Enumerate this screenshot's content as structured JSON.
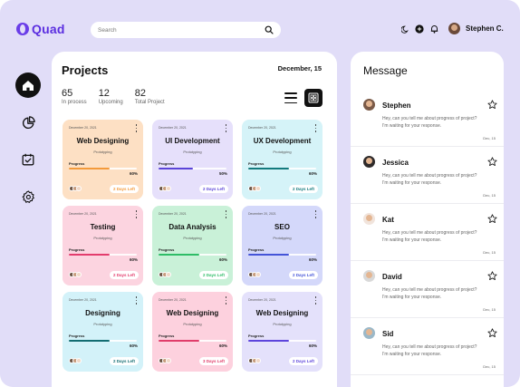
{
  "app": {
    "logo": "Quad"
  },
  "search": {
    "placeholder": "Search"
  },
  "user": {
    "name": "Stephen C."
  },
  "projects": {
    "title": "Projects",
    "date": "December, 15",
    "stats": [
      {
        "value": "65",
        "label": "In process"
      },
      {
        "value": "12",
        "label": "Upcoming"
      },
      {
        "value": "82",
        "label": "Total Project"
      }
    ],
    "cards": [
      {
        "date": "December 20, 2021",
        "name": "Web Designing",
        "category": "Prototyping",
        "progress_label": "Progress",
        "percent": "60%",
        "progress": 0.6,
        "days": "2 Days Left",
        "bg": "#fde0c4",
        "bar": "#f39a3b"
      },
      {
        "date": "December 20, 2021",
        "name": "UI Development",
        "category": "Prototyping",
        "progress_label": "Progress",
        "percent": "50%",
        "progress": 0.5,
        "days": "2 Days Left",
        "bg": "#e6e0fb",
        "bar": "#5b44d8"
      },
      {
        "date": "December 20, 2021",
        "name": "UX Development",
        "category": "Prototyping",
        "progress_label": "Progress",
        "percent": "60%",
        "progress": 0.6,
        "days": "2 Days Left",
        "bg": "#d5f3f8",
        "bar": "#137a7d"
      },
      {
        "date": "December 20, 2021",
        "name": "Testing",
        "category": "Prototyping",
        "progress_label": "Progress",
        "percent": "60%",
        "progress": 0.6,
        "days": "2 Days Left",
        "bg": "#fcd4e0",
        "bar": "#e33c6d"
      },
      {
        "date": "December 20, 2021",
        "name": "Data Analysis",
        "category": "Prototyping",
        "progress_label": "Progress",
        "percent": "60%",
        "progress": 0.6,
        "days": "2 Days Left",
        "bg": "#c9f1d8",
        "bar": "#2ebd67"
      },
      {
        "date": "December 20, 2021",
        "name": "SEO",
        "category": "Prototyping",
        "progress_label": "Progress",
        "percent": "60%",
        "progress": 0.6,
        "days": "2 Days Left",
        "bg": "#d4d8fa",
        "bar": "#4454d8"
      },
      {
        "date": "December 20, 2021",
        "name": "Designing",
        "category": "Prototyping",
        "progress_label": "Progress",
        "percent": "60%",
        "progress": 0.6,
        "days": "2 Days Left",
        "bg": "#d3f2f9",
        "bar": "#136d72"
      },
      {
        "date": "December 20, 2021",
        "name": "Web Designing",
        "category": "Prototyping",
        "progress_label": "Progress",
        "percent": "60%",
        "progress": 0.6,
        "days": "3 Days Left",
        "bg": "#fdd1de",
        "bar": "#e03d6a"
      },
      {
        "date": "December 20, 2021",
        "name": "Web Designing",
        "category": "Prototyping",
        "progress_label": "Progress",
        "percent": "60%",
        "progress": 0.6,
        "days": "2 Days Left",
        "bg": "#e4e1fb",
        "bar": "#5d45dc"
      }
    ]
  },
  "messages": {
    "title": "Message",
    "items": [
      {
        "name": "Stephen",
        "text": "Hey, can you tell me about progress of project? I'm waiting for your response.",
        "date": "Dec, 15",
        "avatar": "#7a5a48"
      },
      {
        "name": "Jessica",
        "text": "Hey, can you tell me about progress of project? I'm waiting for your response.",
        "date": "Dec, 15",
        "avatar": "#2e2a2a"
      },
      {
        "name": "Kat",
        "text": "Hey, can you tell me about progress of project? I'm waiting for your response.",
        "date": "Dec, 15",
        "avatar": "#f1e4dc"
      },
      {
        "name": "David",
        "text": "Hey, can you tell me about progress of project? I'm waiting for your response.",
        "date": "Dec, 15",
        "avatar": "#d9d9d9"
      },
      {
        "name": "Sid",
        "text": "Hey, can you tell me about progress of project? I'm waiting for your response.",
        "date": "Dec, 15",
        "avatar": "#9bb8c8"
      }
    ]
  },
  "colors": {
    "brand": "#5b2ee0",
    "background": "#e1ddf8",
    "nav_active": "#111111"
  },
  "icons": {
    "nav": [
      "home-icon",
      "pie-chart-icon",
      "calendar-check-icon",
      "settings-icon"
    ],
    "header": [
      "search-icon",
      "moon-icon",
      "add-icon",
      "bell-icon"
    ]
  }
}
